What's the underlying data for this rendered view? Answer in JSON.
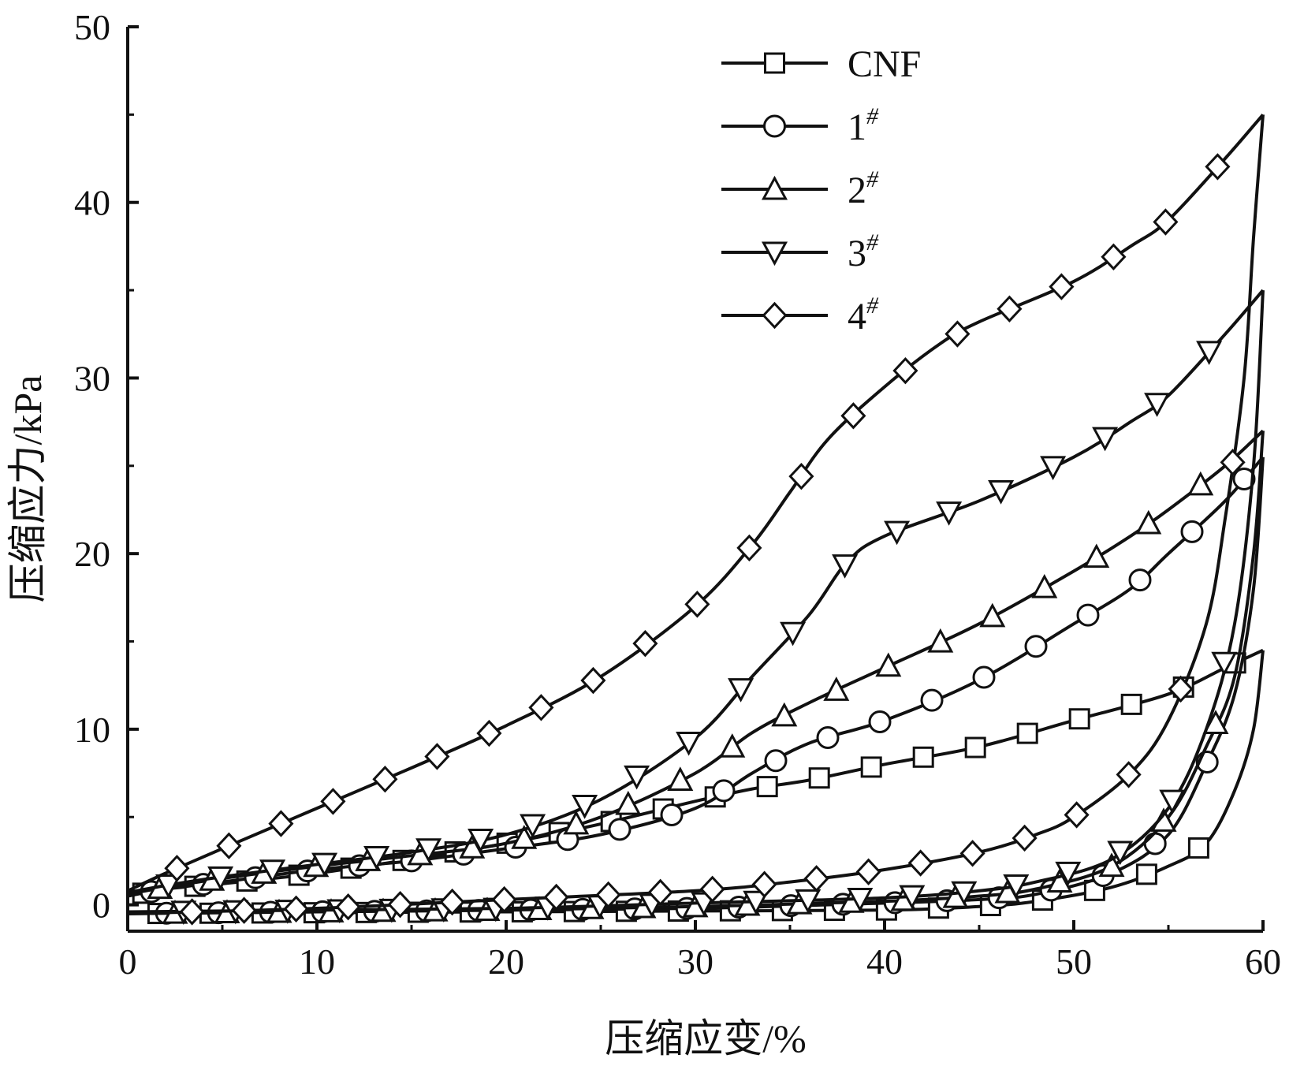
{
  "chart_data": {
    "type": "line",
    "title": "",
    "xlabel": "压缩应变/%",
    "ylabel": "压缩应力/kPa",
    "xlim": [
      0,
      60
    ],
    "ylim": [
      -1.5,
      50
    ],
    "xticks": [
      0,
      10,
      20,
      30,
      40,
      50,
      60
    ],
    "yticks": [
      0,
      10,
      20,
      30,
      40,
      50
    ],
    "grid": false,
    "legend_position": "top-right",
    "series": [
      {
        "name": "CNF",
        "sup": "",
        "marker": "square",
        "loading": [
          [
            0,
            0.5
          ],
          [
            2,
            0.9
          ],
          [
            5,
            1.2
          ],
          [
            10,
            1.8
          ],
          [
            15,
            2.6
          ],
          [
            20,
            3.5
          ],
          [
            25,
            4.6
          ],
          [
            30,
            5.9
          ],
          [
            33,
            6.6
          ],
          [
            36,
            7.1
          ],
          [
            40,
            8.0
          ],
          [
            45,
            9.0
          ],
          [
            50,
            10.5
          ],
          [
            55,
            12.0
          ],
          [
            58,
            13.5
          ],
          [
            60,
            14.5
          ]
        ],
        "unloading": [
          [
            60,
            14.5
          ],
          [
            59.5,
            10
          ],
          [
            58.5,
            6.5
          ],
          [
            57,
            3.5
          ],
          [
            55,
            2.2
          ],
          [
            52,
            1.0
          ],
          [
            48,
            0.2
          ],
          [
            45,
            -0.1
          ],
          [
            40,
            -0.3
          ],
          [
            30,
            -0.35
          ],
          [
            20,
            -0.4
          ],
          [
            10,
            -0.45
          ],
          [
            0,
            -0.5
          ]
        ]
      },
      {
        "name": "1",
        "sup": "#",
        "marker": "circle",
        "loading": [
          [
            0,
            0.5
          ],
          [
            2,
            0.9
          ],
          [
            5,
            1.3
          ],
          [
            10,
            2.0
          ],
          [
            15,
            2.5
          ],
          [
            20,
            3.2
          ],
          [
            25,
            4.0
          ],
          [
            30,
            5.5
          ],
          [
            33,
            7.5
          ],
          [
            36,
            9.2
          ],
          [
            40,
            10.5
          ],
          [
            45,
            12.8
          ],
          [
            50,
            16.0
          ],
          [
            53,
            18.0
          ],
          [
            55,
            20.0
          ],
          [
            58,
            23.0
          ],
          [
            60,
            25.5
          ]
        ],
        "unloading": [
          [
            60,
            25.5
          ],
          [
            59.5,
            18
          ],
          [
            58.5,
            12
          ],
          [
            57,
            8
          ],
          [
            55,
            4
          ],
          [
            52,
            1.8
          ],
          [
            48,
            0.6
          ],
          [
            45,
            0.3
          ],
          [
            40,
            0.1
          ],
          [
            30,
            -0.2
          ],
          [
            20,
            -0.3
          ],
          [
            10,
            -0.4
          ],
          [
            0,
            -0.5
          ]
        ]
      },
      {
        "name": "2",
        "sup": "#",
        "marker": "triangle-up",
        "loading": [
          [
            0,
            0.6
          ],
          [
            2,
            1.0
          ],
          [
            5,
            1.5
          ],
          [
            10,
            2.2
          ],
          [
            15,
            2.8
          ],
          [
            20,
            3.5
          ],
          [
            25,
            5.0
          ],
          [
            30,
            7.5
          ],
          [
            33,
            9.8
          ],
          [
            36,
            11.5
          ],
          [
            40,
            13.5
          ],
          [
            45,
            16.0
          ],
          [
            50,
            19.0
          ],
          [
            53,
            21.0
          ],
          [
            55,
            22.5
          ],
          [
            58,
            25.0
          ],
          [
            60,
            27.0
          ]
        ],
        "unloading": [
          [
            60,
            27.0
          ],
          [
            59.5,
            20
          ],
          [
            58.5,
            13
          ],
          [
            57,
            9
          ],
          [
            55,
            5
          ],
          [
            52,
            2.2
          ],
          [
            48,
            0.9
          ],
          [
            45,
            0.5
          ],
          [
            40,
            0.2
          ],
          [
            30,
            -0.1
          ],
          [
            20,
            -0.3
          ],
          [
            10,
            -0.4
          ],
          [
            0,
            -0.5
          ]
        ]
      },
      {
        "name": "3",
        "sup": "#",
        "marker": "triangle-down",
        "loading": [
          [
            0,
            0.7
          ],
          [
            2,
            1.1
          ],
          [
            5,
            1.6
          ],
          [
            10,
            2.3
          ],
          [
            15,
            3.0
          ],
          [
            20,
            4.0
          ],
          [
            25,
            6.0
          ],
          [
            30,
            9.5
          ],
          [
            33,
            13.0
          ],
          [
            36,
            16.5
          ],
          [
            38,
            19.5
          ],
          [
            40,
            21.0
          ],
          [
            45,
            23.0
          ],
          [
            50,
            25.5
          ],
          [
            53,
            27.5
          ],
          [
            55,
            29.0
          ],
          [
            58,
            32.5
          ],
          [
            60,
            35.0
          ]
        ],
        "unloading": [
          [
            60,
            35.0
          ],
          [
            59.5,
            25
          ],
          [
            58.5,
            16
          ],
          [
            57,
            10
          ],
          [
            55,
            5.5
          ],
          [
            52,
            2.6
          ],
          [
            48,
            1.3
          ],
          [
            45,
            0.8
          ],
          [
            40,
            0.4
          ],
          [
            30,
            0.1
          ],
          [
            20,
            -0.2
          ],
          [
            10,
            -0.3
          ],
          [
            0,
            -0.4
          ]
        ]
      },
      {
        "name": "4",
        "sup": "#",
        "marker": "diamond",
        "loading": [
          [
            0,
            0.8
          ],
          [
            2,
            1.8
          ],
          [
            5,
            3.2
          ],
          [
            10,
            5.5
          ],
          [
            15,
            7.8
          ],
          [
            20,
            10.2
          ],
          [
            25,
            13.0
          ],
          [
            30,
            17.0
          ],
          [
            33,
            20.5
          ],
          [
            35,
            23.5
          ],
          [
            37,
            26.5
          ],
          [
            40,
            29.5
          ],
          [
            43,
            32.0
          ],
          [
            45,
            33.2
          ],
          [
            50,
            35.5
          ],
          [
            53,
            37.5
          ],
          [
            55,
            39.0
          ],
          [
            58,
            42.5
          ],
          [
            60,
            45.0
          ]
        ],
        "unloading": [
          [
            60,
            45.0
          ],
          [
            59.5,
            38
          ],
          [
            59,
            30
          ],
          [
            58,
            22
          ],
          [
            57,
            16
          ],
          [
            55,
            10.5
          ],
          [
            53,
            7.5
          ],
          [
            50,
            5.0
          ],
          [
            48,
            4.0
          ],
          [
            45,
            3.0
          ],
          [
            40,
            2.0
          ],
          [
            35,
            1.3
          ],
          [
            30,
            0.8
          ],
          [
            20,
            0.3
          ],
          [
            10,
            -0.2
          ],
          [
            0,
            -0.5
          ]
        ]
      }
    ]
  }
}
